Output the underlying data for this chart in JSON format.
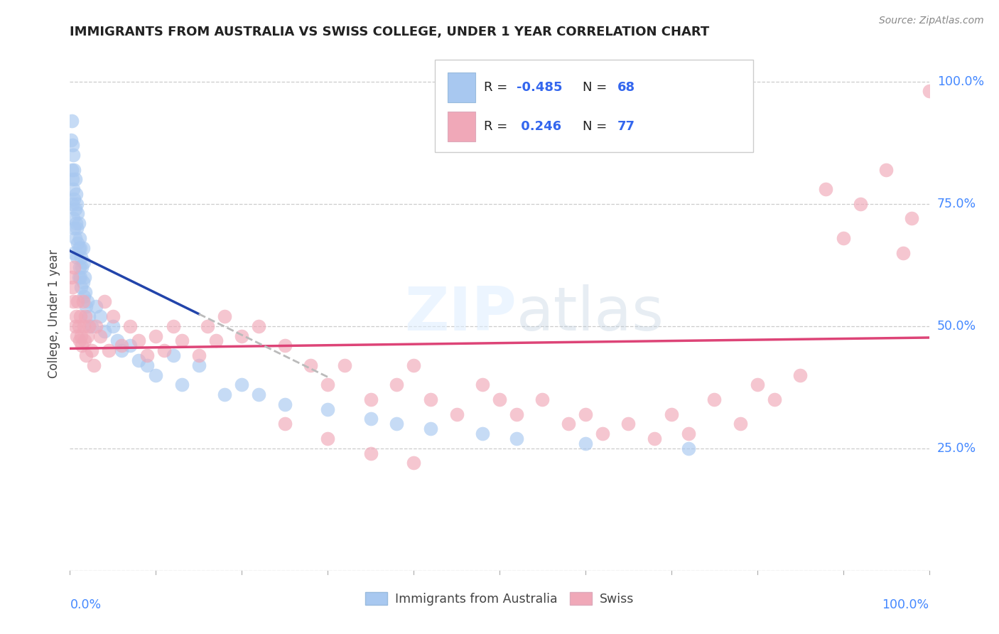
{
  "title": "IMMIGRANTS FROM AUSTRALIA VS SWISS COLLEGE, UNDER 1 YEAR CORRELATION CHART",
  "source": "Source: ZipAtlas.com",
  "ylabel": "College, Under 1 year",
  "legend_label1": "Immigrants from Australia",
  "legend_label2": "Swiss",
  "R1": -0.485,
  "N1": 68,
  "R2": 0.246,
  "N2": 77,
  "blue_color": "#A8C8F0",
  "pink_color": "#F0A8B8",
  "line_blue": "#2244AA",
  "line_pink": "#DD4477",
  "line_dashed_color": "#BBBBBB",
  "background": "#FFFFFF",
  "title_color": "#222222",
  "axis_label_color": "#444444",
  "right_label_color": "#4488FF",
  "watermark_color": "#DDEEFF",
  "blue_scatter_x": [
    0.001,
    0.002,
    0.002,
    0.003,
    0.003,
    0.003,
    0.004,
    0.004,
    0.004,
    0.005,
    0.005,
    0.005,
    0.005,
    0.006,
    0.006,
    0.006,
    0.007,
    0.007,
    0.008,
    0.008,
    0.008,
    0.009,
    0.009,
    0.01,
    0.01,
    0.01,
    0.011,
    0.011,
    0.012,
    0.012,
    0.013,
    0.013,
    0.014,
    0.015,
    0.015,
    0.016,
    0.016,
    0.017,
    0.018,
    0.019,
    0.02,
    0.022,
    0.025,
    0.03,
    0.035,
    0.04,
    0.05,
    0.055,
    0.06,
    0.07,
    0.08,
    0.09,
    0.1,
    0.12,
    0.13,
    0.15,
    0.18,
    0.2,
    0.22,
    0.25,
    0.3,
    0.35,
    0.38,
    0.42,
    0.48,
    0.52,
    0.6,
    0.72
  ],
  "blue_scatter_y": [
    0.88,
    0.92,
    0.82,
    0.87,
    0.8,
    0.75,
    0.85,
    0.78,
    0.72,
    0.82,
    0.76,
    0.7,
    0.65,
    0.8,
    0.74,
    0.68,
    0.77,
    0.71,
    0.75,
    0.7,
    0.64,
    0.73,
    0.67,
    0.71,
    0.66,
    0.6,
    0.68,
    0.62,
    0.66,
    0.6,
    0.64,
    0.58,
    0.62,
    0.66,
    0.59,
    0.63,
    0.56,
    0.6,
    0.57,
    0.54,
    0.55,
    0.52,
    0.5,
    0.54,
    0.52,
    0.49,
    0.5,
    0.47,
    0.45,
    0.46,
    0.43,
    0.42,
    0.4,
    0.44,
    0.38,
    0.42,
    0.36,
    0.38,
    0.36,
    0.34,
    0.33,
    0.31,
    0.3,
    0.29,
    0.28,
    0.27,
    0.26,
    0.25
  ],
  "pink_scatter_x": [
    0.002,
    0.003,
    0.004,
    0.005,
    0.006,
    0.007,
    0.008,
    0.009,
    0.01,
    0.011,
    0.012,
    0.013,
    0.014,
    0.015,
    0.016,
    0.017,
    0.018,
    0.019,
    0.02,
    0.022,
    0.025,
    0.028,
    0.03,
    0.035,
    0.04,
    0.045,
    0.05,
    0.06,
    0.07,
    0.08,
    0.09,
    0.1,
    0.11,
    0.12,
    0.13,
    0.15,
    0.16,
    0.17,
    0.18,
    0.2,
    0.22,
    0.25,
    0.28,
    0.3,
    0.32,
    0.35,
    0.38,
    0.4,
    0.42,
    0.45,
    0.48,
    0.5,
    0.52,
    0.55,
    0.58,
    0.6,
    0.62,
    0.65,
    0.68,
    0.7,
    0.72,
    0.75,
    0.78,
    0.8,
    0.82,
    0.85,
    0.88,
    0.9,
    0.92,
    0.95,
    0.97,
    0.98,
    1.0,
    0.25,
    0.3,
    0.35,
    0.4
  ],
  "pink_scatter_y": [
    0.6,
    0.58,
    0.55,
    0.62,
    0.5,
    0.52,
    0.48,
    0.55,
    0.5,
    0.47,
    0.52,
    0.48,
    0.46,
    0.55,
    0.5,
    0.47,
    0.52,
    0.44,
    0.48,
    0.5,
    0.45,
    0.42,
    0.5,
    0.48,
    0.55,
    0.45,
    0.52,
    0.46,
    0.5,
    0.47,
    0.44,
    0.48,
    0.45,
    0.5,
    0.47,
    0.44,
    0.5,
    0.47,
    0.52,
    0.48,
    0.5,
    0.46,
    0.42,
    0.38,
    0.42,
    0.35,
    0.38,
    0.42,
    0.35,
    0.32,
    0.38,
    0.35,
    0.32,
    0.35,
    0.3,
    0.32,
    0.28,
    0.3,
    0.27,
    0.32,
    0.28,
    0.35,
    0.3,
    0.38,
    0.35,
    0.4,
    0.78,
    0.68,
    0.75,
    0.82,
    0.65,
    0.72,
    0.98,
    0.3,
    0.27,
    0.24,
    0.22
  ]
}
